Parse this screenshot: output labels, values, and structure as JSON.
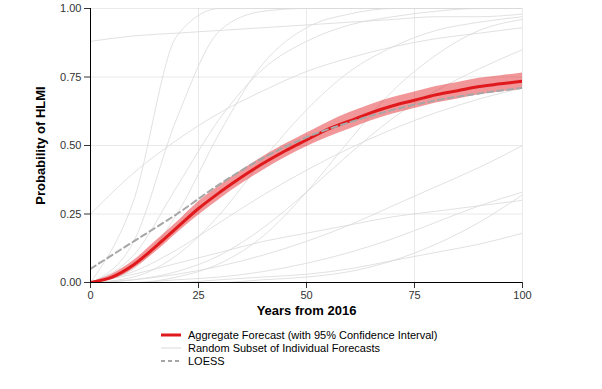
{
  "chart_data": {
    "type": "line",
    "xlabel": "Years from 2016",
    "ylabel": "Probability of HLMI",
    "xlim": [
      0,
      100
    ],
    "ylim": [
      0,
      1
    ],
    "xticks": [
      0,
      25,
      50,
      75,
      100
    ],
    "yticks": [
      {
        "value": 0,
        "label": "0.00"
      },
      {
        "value": 0.25,
        "label": "0.25"
      },
      {
        "value": 0.5,
        "label": "0.50"
      },
      {
        "value": 0.75,
        "label": "0.75"
      },
      {
        "value": 1,
        "label": "1.00"
      }
    ],
    "grid": true,
    "legend": "bottom",
    "series": [
      {
        "name": "Aggregate Forecast (with 95% Confidence Interval)",
        "color": "#e0191c",
        "line_style": "solid",
        "x": [
          0,
          5,
          10,
          15,
          20,
          25,
          30,
          35,
          40,
          45,
          50,
          55,
          60,
          65,
          70,
          75,
          80,
          85,
          90,
          95,
          100
        ],
        "values": [
          0,
          0.02,
          0.065,
          0.13,
          0.2,
          0.27,
          0.33,
          0.385,
          0.435,
          0.48,
          0.52,
          0.56,
          0.59,
          0.62,
          0.645,
          0.665,
          0.685,
          0.7,
          0.715,
          0.725,
          0.735
        ],
        "lower": [
          0,
          0.01,
          0.05,
          0.11,
          0.18,
          0.245,
          0.305,
          0.36,
          0.41,
          0.455,
          0.495,
          0.53,
          0.56,
          0.59,
          0.615,
          0.635,
          0.655,
          0.67,
          0.685,
          0.695,
          0.705
        ],
        "upper": [
          0,
          0.03,
          0.08,
          0.15,
          0.22,
          0.295,
          0.355,
          0.41,
          0.46,
          0.505,
          0.545,
          0.585,
          0.62,
          0.65,
          0.675,
          0.695,
          0.715,
          0.73,
          0.745,
          0.755,
          0.765
        ]
      },
      {
        "name": "Random Subset of Individual Forecasts",
        "color": "#d9d9d9",
        "line_style": "solid",
        "x": [
          0,
          10,
          20,
          30,
          40,
          50,
          60,
          70,
          80,
          90,
          100
        ],
        "values": [
          [
            0,
            0.3,
            0.9,
            1,
            1,
            1,
            1,
            1,
            1,
            1,
            1
          ],
          [
            0,
            0.15,
            0.6,
            0.92,
            0.99,
            1,
            1,
            1,
            1,
            1,
            1
          ],
          [
            0,
            0.05,
            0.25,
            0.55,
            0.8,
            0.93,
            0.98,
            1,
            1,
            1,
            1
          ],
          [
            0.88,
            0.9,
            0.91,
            0.92,
            0.93,
            0.94,
            0.95,
            0.96,
            0.97,
            0.97,
            0.98
          ],
          [
            0,
            0.02,
            0.1,
            0.25,
            0.45,
            0.63,
            0.77,
            0.86,
            0.92,
            0.95,
            0.97
          ],
          [
            0,
            0.01,
            0.04,
            0.1,
            0.2,
            0.33,
            0.47,
            0.6,
            0.7,
            0.78,
            0.85
          ],
          [
            0,
            0.01,
            0.03,
            0.06,
            0.1,
            0.15,
            0.21,
            0.28,
            0.35,
            0.42,
            0.5
          ],
          [
            0,
            0,
            0.01,
            0.02,
            0.04,
            0.07,
            0.11,
            0.16,
            0.22,
            0.28,
            0.33
          ],
          [
            0,
            0.03,
            0.07,
            0.11,
            0.15,
            0.18,
            0.21,
            0.24,
            0.26,
            0.28,
            0.3
          ],
          [
            0,
            0,
            0,
            0.01,
            0.02,
            0.03,
            0.05,
            0.08,
            0.11,
            0.14,
            0.18
          ],
          [
            0,
            0.1,
            0.35,
            0.6,
            0.78,
            0.88,
            0.94,
            0.97,
            0.99,
            1,
            1
          ],
          [
            0,
            0,
            0.02,
            0.07,
            0.17,
            0.33,
            0.52,
            0.7,
            0.83,
            0.92,
            0.96
          ],
          [
            0,
            0.04,
            0.12,
            0.22,
            0.32,
            0.41,
            0.49,
            0.56,
            0.62,
            0.67,
            0.71
          ],
          [
            0,
            0,
            0,
            0,
            0.01,
            0.02,
            0.04,
            0.08,
            0.14,
            0.22,
            0.32
          ],
          [
            0.25,
            0.4,
            0.52,
            0.62,
            0.7,
            0.77,
            0.82,
            0.86,
            0.89,
            0.91,
            0.93
          ]
        ]
      },
      {
        "name": "LOESS",
        "color": "#a6a6a6",
        "line_style": "dashed",
        "x": [
          0,
          10,
          20,
          30,
          40,
          50,
          60,
          70,
          80,
          90,
          100
        ],
        "values": [
          0.05,
          0.15,
          0.25,
          0.36,
          0.455,
          0.53,
          0.585,
          0.63,
          0.665,
          0.69,
          0.71
        ]
      }
    ]
  }
}
